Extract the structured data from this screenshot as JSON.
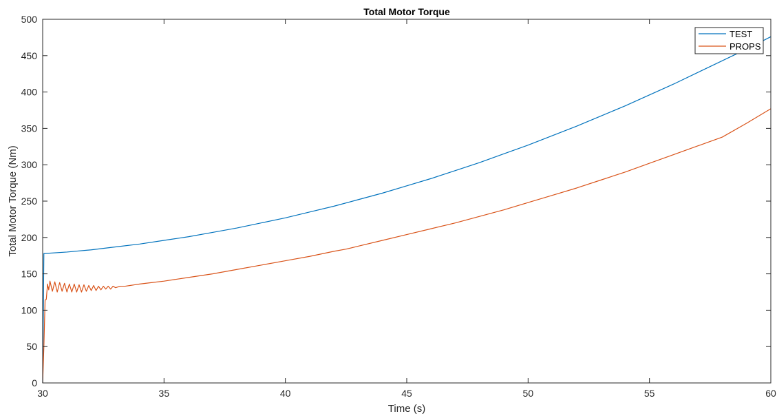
{
  "chart_data": {
    "type": "line",
    "title": "Total Motor Torque",
    "xlabel": "Time (s)",
    "ylabel": "Total Motor Torque (Nm)",
    "xlim": [
      30,
      60
    ],
    "ylim": [
      0,
      500
    ],
    "xticks": [
      30,
      35,
      40,
      45,
      50,
      55,
      60
    ],
    "yticks": [
      0,
      50,
      100,
      150,
      200,
      250,
      300,
      350,
      400,
      450,
      500
    ],
    "grid": false,
    "legend_position": "top-right",
    "series": [
      {
        "name": "TEST",
        "color": "#0072BD",
        "x": [
          30,
          30.05,
          30.1,
          31,
          32,
          33,
          34,
          35,
          36,
          37,
          38,
          39,
          40,
          41,
          42,
          43,
          44,
          45,
          46,
          47,
          48,
          49,
          50,
          51,
          52,
          53,
          54,
          55,
          56,
          57,
          58,
          59,
          60
        ],
        "y": [
          0,
          178,
          178,
          180,
          183,
          187,
          191,
          196,
          201,
          207,
          213,
          220,
          227,
          235,
          243,
          252,
          261,
          271,
          281,
          292,
          303,
          315,
          327,
          340,
          353,
          367,
          381,
          396,
          411,
          427,
          443,
          459,
          476
        ]
      },
      {
        "name": "PROPS",
        "color": "#D95319",
        "x": [
          30,
          30.05,
          30.1,
          30.15,
          30.2,
          30.25,
          30.3,
          30.4,
          30.5,
          30.6,
          30.7,
          30.8,
          30.9,
          31,
          31.1,
          31.2,
          31.3,
          31.4,
          31.5,
          31.6,
          31.7,
          31.8,
          31.9,
          32,
          32.1,
          32.2,
          32.3,
          32.4,
          32.5,
          32.6,
          32.7,
          32.8,
          32.9,
          33,
          33.2,
          33.4,
          33.6,
          33.8,
          34,
          34.5,
          35,
          36,
          37,
          38,
          39,
          40,
          41,
          42,
          42.5,
          43,
          44,
          45,
          46,
          47,
          48,
          49,
          50,
          51,
          52,
          53,
          54,
          55,
          56,
          57,
          58,
          59,
          60
        ],
        "y": [
          0,
          50,
          114,
          115,
          136,
          128,
          140,
          126,
          139,
          125,
          138,
          126,
          137,
          125,
          136,
          125,
          136,
          125,
          135,
          125,
          135,
          126,
          134,
          127,
          134,
          127,
          133,
          128,
          133,
          129,
          133,
          129,
          133,
          131,
          133,
          133,
          134,
          135,
          136,
          138,
          140,
          145,
          150,
          156,
          162,
          168,
          174,
          181,
          184,
          188,
          196,
          204,
          212,
          220,
          229,
          238,
          248,
          258,
          268,
          279,
          290,
          302,
          314,
          326,
          338,
          357,
          377
        ]
      }
    ]
  }
}
